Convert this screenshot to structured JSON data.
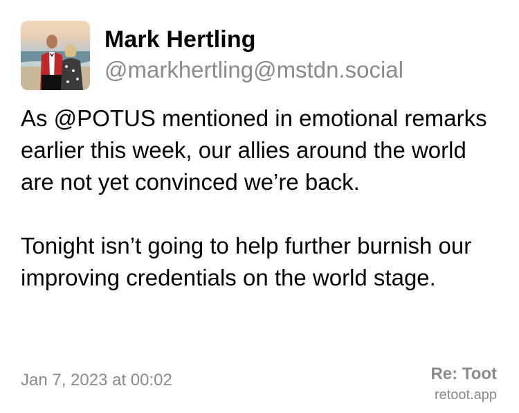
{
  "post": {
    "author": {
      "display_name": "Mark Hertling",
      "handle": "@markhertling@mstdn.social",
      "avatar_icon": "profile-photo"
    },
    "paragraphs": [
      "As @POTUS mentioned in emotional remarks earlier this week, our allies around the world are not yet convinced we’re back.",
      "Tonight isn’t going to help further burnish our improving credentials on the world stage."
    ],
    "timestamp": "Jan 7, 2023 at 00:02"
  },
  "branding": {
    "title": "Re: Toot",
    "url": "retoot.app"
  },
  "colors": {
    "text": "#000000",
    "secondary_text": "#8a8a8e",
    "background": "#ffffff"
  }
}
